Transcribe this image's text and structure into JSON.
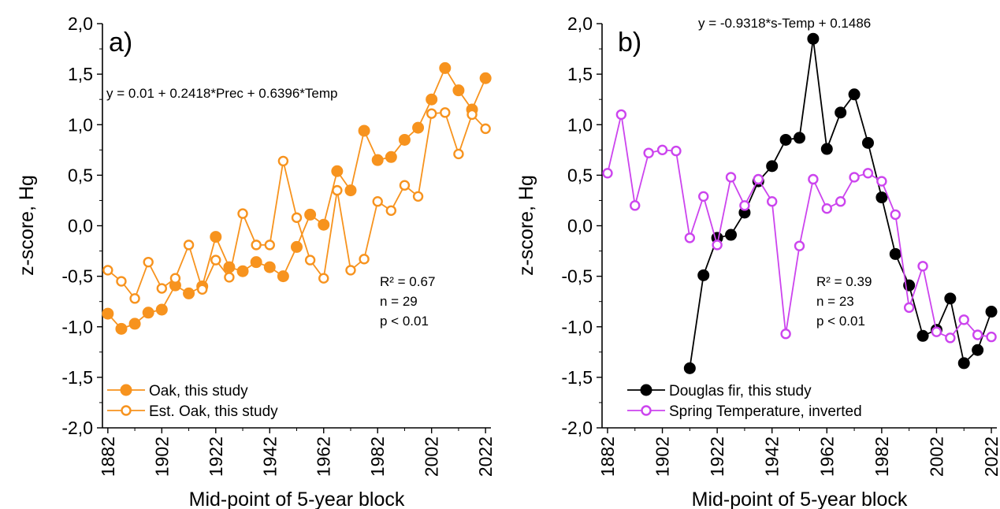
{
  "chart_data": [
    {
      "type": "line",
      "panel_label": "a)",
      "equation": "y = 0.01 + 0.2418*Prec + 0.6396*Temp",
      "stats": [
        "R² = 0.67",
        "n = 29",
        "p < 0.01"
      ],
      "xlabel": "Mid-point of 5-year block",
      "ylabel": "z-score, Hg",
      "xlim": [
        1880,
        2024
      ],
      "ylim": [
        -2.0,
        2.0
      ],
      "x_ticks": [
        "1882",
        "1902",
        "1922",
        "1942",
        "1962",
        "1982",
        "2002",
        "2022"
      ],
      "y_ticks": [
        "2,0",
        "1,5",
        "1,0",
        "0,5",
        "0,0",
        "-0,5",
        "-1,0",
        "-1,5",
        "-2,0"
      ],
      "legend_position": "bottom-left",
      "grid": false,
      "series": [
        {
          "name": "Oak, this study",
          "color": "#f7931e",
          "marker": "filled-circle",
          "x": [
            1882,
            1887,
            1892,
            1897,
            1902,
            1907,
            1912,
            1917,
            1922,
            1927,
            1932,
            1937,
            1942,
            1947,
            1952,
            1957,
            1962,
            1967,
            1972,
            1977,
            1982,
            1987,
            1992,
            1997,
            2002,
            2007,
            2012,
            2017,
            2022
          ],
          "y": [
            -0.87,
            -1.02,
            -0.97,
            -0.86,
            -0.83,
            -0.59,
            -0.67,
            -0.6,
            -0.11,
            -0.41,
            -0.45,
            -0.36,
            -0.41,
            -0.5,
            -0.21,
            0.11,
            0.01,
            0.54,
            0.35,
            0.94,
            0.65,
            0.68,
            0.85,
            0.97,
            1.25,
            1.56,
            1.34,
            1.15,
            1.46
          ]
        },
        {
          "name": "Est. Oak, this study",
          "color": "#f7931e",
          "marker": "open-circle",
          "x": [
            1882,
            1887,
            1892,
            1897,
            1902,
            1907,
            1912,
            1917,
            1922,
            1927,
            1932,
            1937,
            1942,
            1947,
            1952,
            1957,
            1962,
            1967,
            1972,
            1977,
            1982,
            1987,
            1992,
            1997,
            2002,
            2007,
            2012,
            2017,
            2022
          ],
          "y": [
            -0.44,
            -0.55,
            -0.72,
            -0.36,
            -0.62,
            -0.52,
            -0.19,
            -0.63,
            -0.34,
            -0.51,
            0.12,
            -0.19,
            -0.19,
            0.64,
            0.08,
            -0.34,
            -0.52,
            0.35,
            -0.44,
            -0.33,
            0.24,
            0.15,
            0.4,
            0.29,
            1.11,
            1.12,
            0.71,
            1.1,
            0.96
          ]
        }
      ]
    },
    {
      "type": "line",
      "panel_label": "b)",
      "equation": "y = -0.9318*s-Temp + 0.1486",
      "stats": [
        "R² = 0.39",
        "n = 23",
        "p < 0.01"
      ],
      "xlabel": "Mid-point of 5-year block",
      "ylabel": "z-score, Hg",
      "xlim": [
        1880,
        2024
      ],
      "ylim": [
        -2.0,
        2.0
      ],
      "x_ticks": [
        "1882",
        "1902",
        "1922",
        "1942",
        "1962",
        "1982",
        "2002",
        "2022"
      ],
      "y_ticks": [
        "2,0",
        "1,5",
        "1,0",
        "0,5",
        "0,0",
        "-0,5",
        "-1,0",
        "-1,5",
        "-2,0"
      ],
      "legend_position": "bottom-left",
      "grid": false,
      "series": [
        {
          "name": "Douglas fir, this study",
          "color": "#000000",
          "marker": "filled-circle",
          "x": [
            1912,
            1917,
            1922,
            1927,
            1932,
            1937,
            1942,
            1947,
            1952,
            1957,
            1962,
            1967,
            1972,
            1977,
            1982,
            1987,
            1992,
            1997,
            2002,
            2007,
            2012,
            2017,
            2022
          ],
          "y": [
            -1.41,
            -0.49,
            -0.12,
            -0.09,
            0.13,
            0.44,
            0.59,
            0.85,
            0.87,
            1.85,
            0.76,
            1.12,
            1.3,
            0.82,
            0.28,
            -0.28,
            -0.59,
            -1.09,
            -1.03,
            -0.72,
            -1.36,
            -1.23,
            -0.85
          ]
        },
        {
          "name": "Spring Temperature, inverted",
          "color": "#cc44ee",
          "marker": "open-circle",
          "x": [
            1882,
            1887,
            1892,
            1897,
            1902,
            1907,
            1912,
            1917,
            1922,
            1927,
            1932,
            1937,
            1942,
            1947,
            1952,
            1957,
            1962,
            1967,
            1972,
            1977,
            1982,
            1987,
            1992,
            1997,
            2002,
            2007,
            2012,
            2017,
            2022
          ],
          "y": [
            0.52,
            1.1,
            0.2,
            0.72,
            0.75,
            0.74,
            -0.12,
            0.29,
            -0.19,
            0.48,
            0.2,
            0.46,
            0.24,
            -1.07,
            -0.2,
            0.46,
            0.17,
            0.24,
            0.48,
            0.52,
            0.44,
            0.11,
            -0.81,
            -0.4,
            -1.05,
            -1.11,
            -0.93,
            -1.08,
            -1.1
          ]
        }
      ]
    }
  ]
}
